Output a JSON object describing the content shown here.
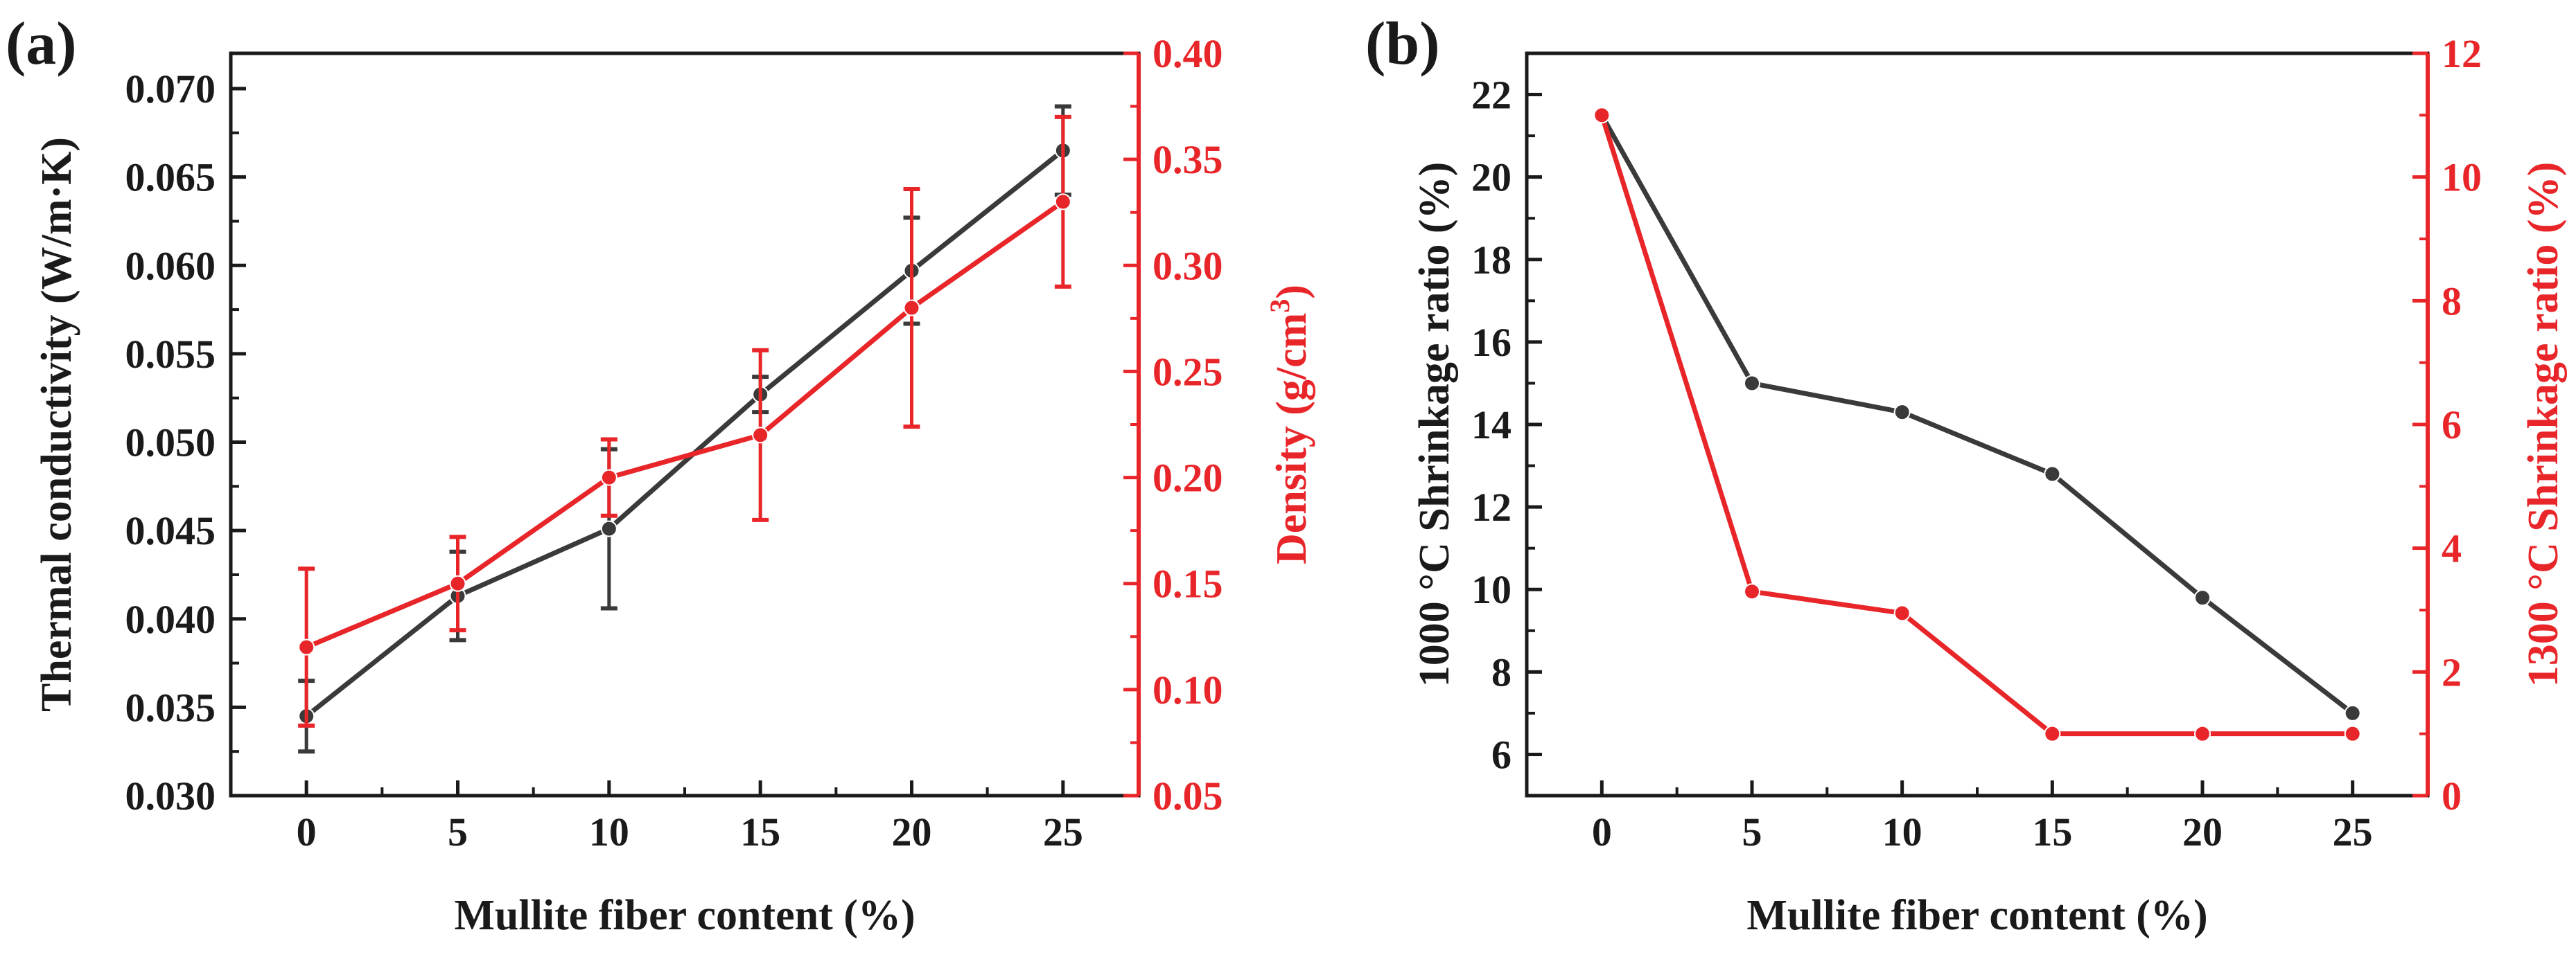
{
  "colors": {
    "black_series": "#3a3a3a",
    "red_series": "#e8262a",
    "axis": "#1a1a1a"
  },
  "chart_data": [
    {
      "panel_label": "(a)",
      "type": "line",
      "xlabel": "Mullite fiber content (%)",
      "x": [
        0,
        5,
        10,
        15,
        20,
        25
      ],
      "xticks": [
        "0",
        "5",
        "10",
        "15",
        "20",
        "25"
      ],
      "xlim": [
        -2.5,
        27.5
      ],
      "ylabel_left": "Thermal conductivity (W/m·K)",
      "ylim_left": [
        0.03,
        0.072
      ],
      "yticks_left": [
        "0.030",
        "0.035",
        "0.040",
        "0.045",
        "0.050",
        "0.055",
        "0.060",
        "0.065",
        "0.070"
      ],
      "ylabel_right_main": "Density (g/cm",
      "ylabel_right_sup": "3",
      "ylabel_right_tail": ")",
      "ylim_right": [
        0.05,
        0.4
      ],
      "yticks_right": [
        "0.05",
        "0.10",
        "0.15",
        "0.20",
        "0.25",
        "0.30",
        "0.35",
        "0.40"
      ],
      "series": [
        {
          "name": "Thermal conductivity",
          "axis": "left",
          "color": "#3a3a3a",
          "values": [
            0.0345,
            0.0413,
            0.0451,
            0.0527,
            0.0597,
            0.0665
          ],
          "errors": [
            0.002,
            0.0025,
            0.0045,
            0.001,
            0.003,
            0.0025
          ]
        },
        {
          "name": "Density",
          "axis": "right",
          "color": "#e8262a",
          "values": [
            0.12,
            0.15,
            0.2,
            0.22,
            0.28,
            0.33
          ],
          "errors": [
            0.037,
            0.022,
            0.018,
            0.04,
            0.056,
            0.04
          ]
        }
      ]
    },
    {
      "panel_label": "(b)",
      "type": "line",
      "xlabel": "Mullite fiber content (%)",
      "x": [
        0,
        5,
        10,
        15,
        20,
        25
      ],
      "xticks": [
        "0",
        "5",
        "10",
        "15",
        "20",
        "25"
      ],
      "xlim": [
        -2.5,
        27.5
      ],
      "ylabel_left": "1000 °C Shrinkage ratio (%)",
      "ylim_left": [
        5,
        23
      ],
      "yticks_left": [
        "6",
        "8",
        "10",
        "12",
        "14",
        "16",
        "18",
        "20",
        "22"
      ],
      "ylabel_right": "1300 °C Shrinkage ratio (%)",
      "ylim_right": [
        0,
        12
      ],
      "yticks_right": [
        "0",
        "2",
        "4",
        "6",
        "8",
        "10",
        "12"
      ],
      "series": [
        {
          "name": "1000 °C Shrinkage ratio",
          "axis": "left",
          "color": "#3a3a3a",
          "values": [
            21.5,
            15.0,
            14.3,
            12.8,
            9.8,
            7.0
          ]
        },
        {
          "name": "1300 °C Shrinkage ratio",
          "axis": "right",
          "color": "#e8262a",
          "values": [
            11.0,
            3.3,
            2.95,
            1.0,
            1.0,
            1.0
          ]
        }
      ]
    }
  ]
}
